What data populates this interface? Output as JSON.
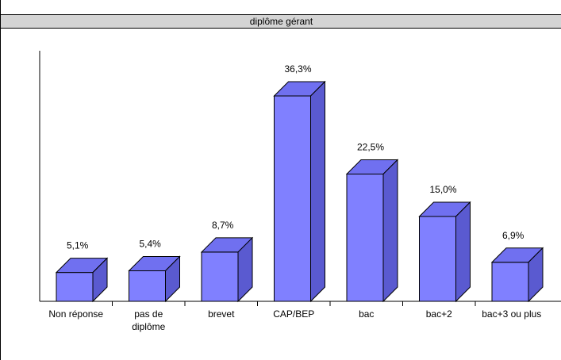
{
  "window": {
    "title": "diplôme gérant"
  },
  "chart_data": {
    "type": "bar",
    "title": "diplôme gérant",
    "xlabel": "",
    "ylabel": "",
    "categories": [
      "Non réponse",
      "pas de diplôme",
      "brevet",
      "CAP/BEP",
      "bac",
      "bac+2",
      "bac+3 ou plus"
    ],
    "category_lines": [
      [
        "Non réponse"
      ],
      [
        "pas de",
        "diplôme"
      ],
      [
        "brevet"
      ],
      [
        "CAP/BEP"
      ],
      [
        "bac"
      ],
      [
        "bac+2"
      ],
      [
        "bac+3 ou plus"
      ]
    ],
    "values": [
      5.1,
      5.4,
      8.7,
      36.3,
      22.5,
      15.0,
      6.9
    ],
    "value_labels": [
      "5,1%",
      "5,4%",
      "8,7%",
      "36,3%",
      "22,5%",
      "15,0%",
      "6,9%"
    ],
    "ylim": [
      0,
      40
    ],
    "grid": false,
    "legend": "none",
    "colors": {
      "bar_front": "#8080ff",
      "bar_top": "#7070f0",
      "bar_side": "#5a5ad0",
      "outline": "#000000"
    }
  }
}
